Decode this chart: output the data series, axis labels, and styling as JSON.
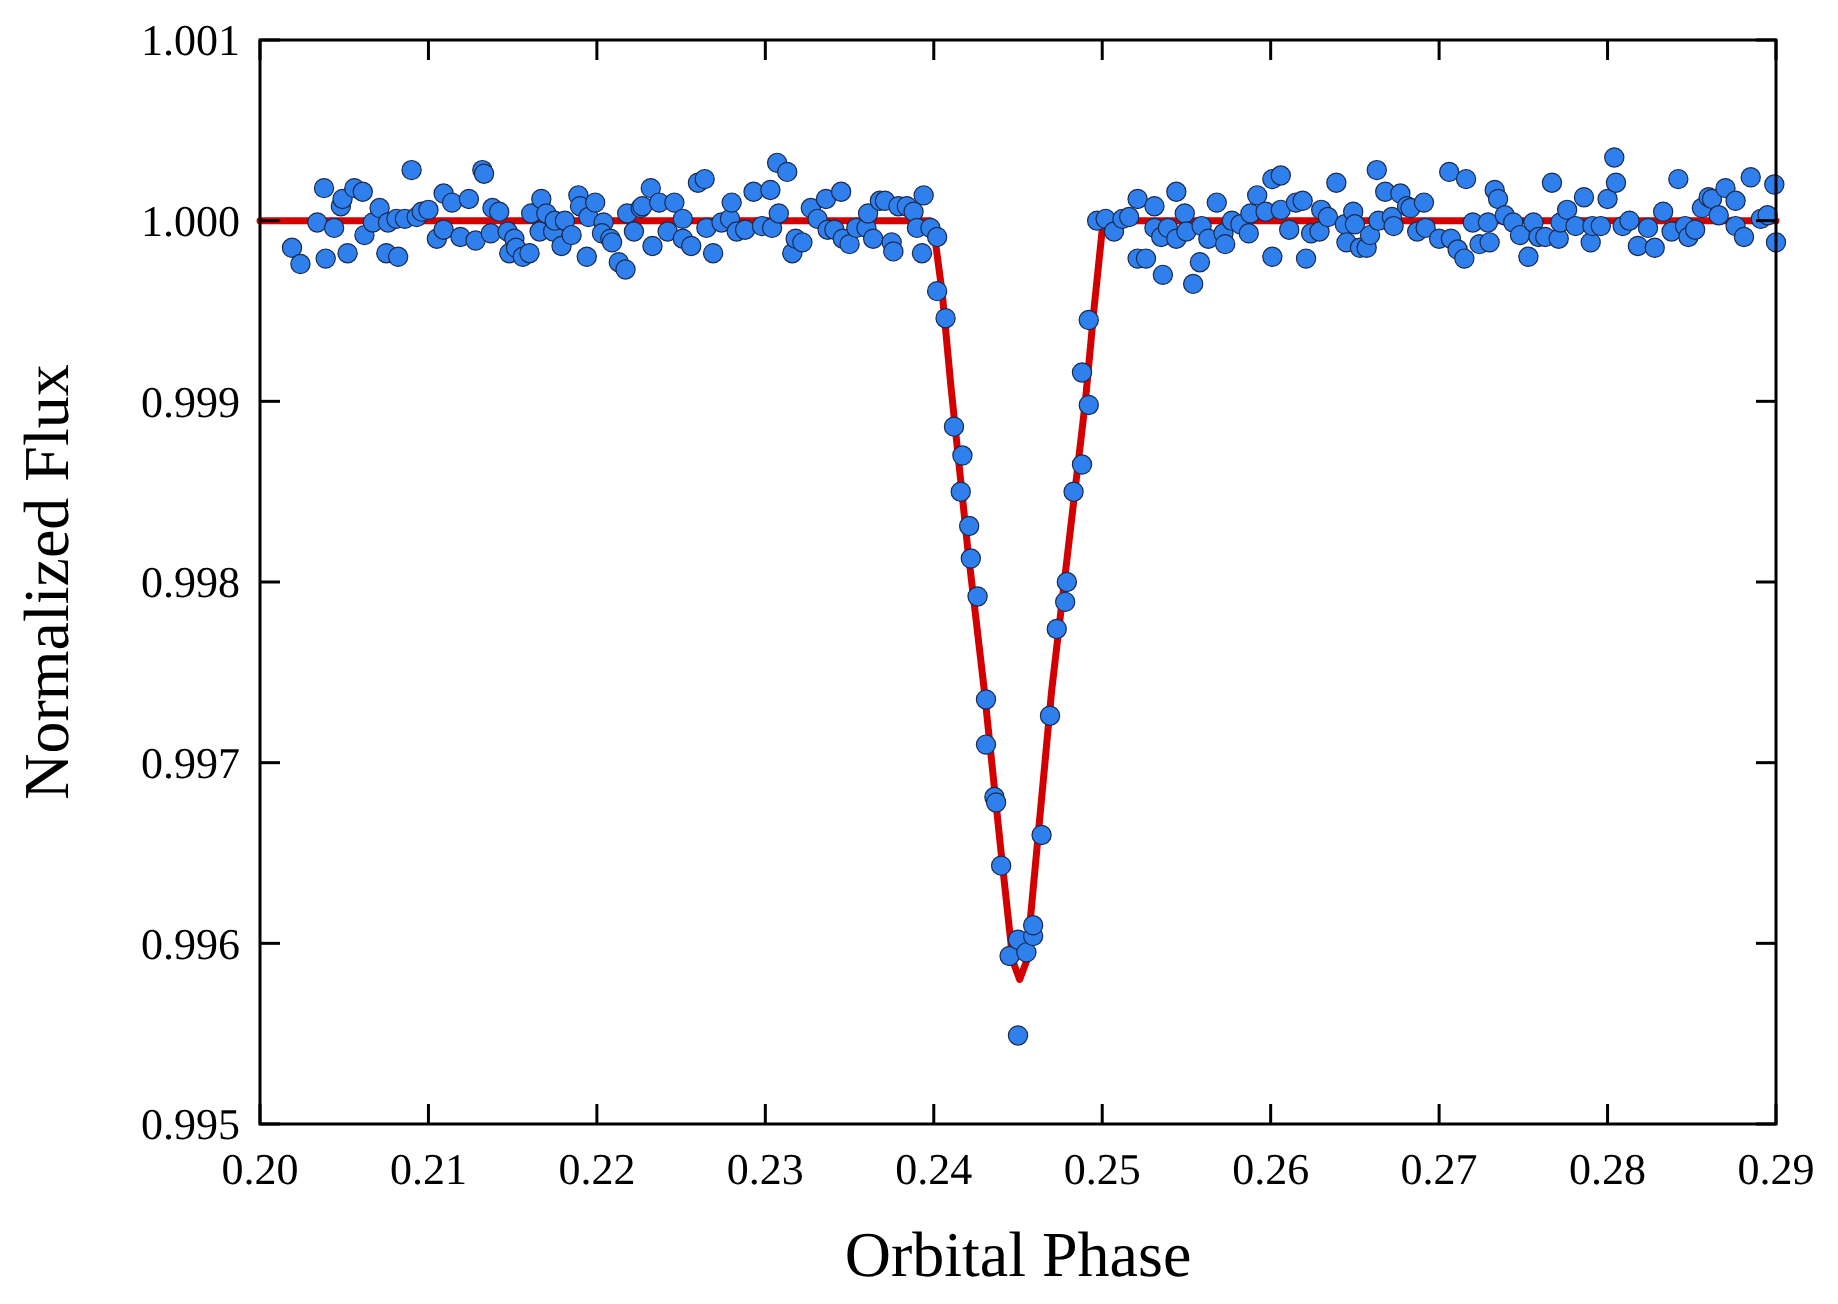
{
  "chart_data": {
    "type": "scatter",
    "xlabel": "Orbital Phase",
    "ylabel": "Normalized Flux",
    "xlim": [
      0.2,
      0.29
    ],
    "ylim": [
      0.995,
      1.001
    ],
    "xticks": [
      {
        "value": 0.2,
        "label": "0.20"
      },
      0.21,
      0.22,
      0.23,
      0.24,
      0.25,
      0.26,
      0.27,
      0.28,
      0.29
    ],
    "yticks": [
      0.995,
      0.996,
      0.997,
      0.998,
      0.999,
      {
        "value": 1,
        "label": "1.000"
      },
      1.001
    ],
    "grid": false,
    "series": [
      {
        "type": "scatter",
        "marker": "circle",
        "color": "#2f80ed",
        "x": [
          0.2019,
          0.2024,
          0.2034,
          0.2038,
          0.2039,
          0.2044,
          0.2048,
          0.2049,
          0.2052,
          0.2056,
          0.2061,
          0.2062,
          0.2067,
          0.2071,
          0.2075,
          0.2076,
          0.2082,
          0.2081,
          0.2086,
          0.209,
          0.2093,
          0.2096,
          0.21,
          0.2105,
          0.2109,
          0.2109,
          0.2114,
          0.2119,
          0.2124,
          0.2128,
          0.2132,
          0.2133,
          0.2137,
          0.2138,
          0.2142,
          0.2147,
          0.2148,
          0.2151,
          0.2152,
          0.2156,
          0.216,
          0.2161,
          0.2166,
          0.2167,
          0.217,
          0.2174,
          0.2175,
          0.2179,
          0.2181,
          0.2185,
          0.2189,
          0.219,
          0.2194,
          0.2195,
          0.2199,
          0.2204,
          0.2203,
          0.2208,
          0.2209,
          0.2213,
          0.2217,
          0.2218,
          0.2222,
          0.2226,
          0.2227,
          0.2232,
          0.2233,
          0.2237,
          0.2242,
          0.2246,
          0.2251,
          0.2251,
          0.2256,
          0.226,
          0.2264,
          0.2265,
          0.2269,
          0.2274,
          0.2279,
          0.228,
          0.2283,
          0.2288,
          0.2293,
          0.2298,
          0.2303,
          0.2304,
          0.2307,
          0.2308,
          0.2313,
          0.2316,
          0.2318,
          0.2322,
          0.2327,
          0.2331,
          0.2336,
          0.2337,
          0.2341,
          0.2345,
          0.2346,
          0.235,
          0.2354,
          0.236,
          0.2361,
          0.2364,
          0.2368,
          0.2371,
          0.2375,
          0.2376,
          0.2379,
          0.2384,
          0.2388,
          0.239,
          0.2393,
          0.2394,
          0.2398,
          0.2402,
          0.2402,
          0.2407,
          0.2412,
          0.2416,
          0.2417,
          0.2421,
          0.2422,
          0.2426,
          0.2431,
          0.2431,
          0.2436,
          0.2437,
          0.244,
          0.2445,
          0.245,
          0.245,
          0.2455,
          0.2459,
          0.2459,
          0.2464,
          0.2469,
          0.2473,
          0.2478,
          0.2479,
          0.2483,
          0.2488,
          0.2488,
          0.2492,
          0.2492,
          0.2497,
          0.2502,
          0.2507,
          0.2512,
          0.2516,
          0.2521,
          0.2521,
          0.2526,
          0.2531,
          0.2531,
          0.2535,
          0.2536,
          0.2539,
          0.2544,
          0.2544,
          0.2549,
          0.255,
          0.2554,
          0.2558,
          0.2559,
          0.2563,
          0.2568,
          0.2572,
          0.2573,
          0.2577,
          0.2582,
          0.2587,
          0.2588,
          0.2592,
          0.2597,
          0.2601,
          0.2601,
          0.2606,
          0.2606,
          0.2611,
          0.2615,
          0.2619,
          0.2621,
          0.2624,
          0.2629,
          0.263,
          0.2634,
          0.2639,
          0.2644,
          0.2645,
          0.2649,
          0.265,
          0.2653,
          0.2657,
          0.2659,
          0.2663,
          0.2664,
          0.2668,
          0.2672,
          0.2673,
          0.2677,
          0.2681,
          0.2683,
          0.2687,
          0.2691,
          0.2692,
          0.27,
          0.2706,
          0.2707,
          0.2711,
          0.2715,
          0.2716,
          0.272,
          0.2724,
          0.2729,
          0.273,
          0.2733,
          0.2735,
          0.2739,
          0.2744,
          0.2748,
          0.2753,
          0.2756,
          0.2759,
          0.2763,
          0.2767,
          0.2771,
          0.2772,
          0.2776,
          0.2781,
          0.2786,
          0.279,
          0.2791,
          0.2796,
          0.28,
          0.2804,
          0.2805,
          0.2809,
          0.2813,
          0.2818,
          0.2824,
          0.2828,
          0.2833,
          0.2838,
          0.2842,
          0.2846,
          0.2848,
          0.2852,
          0.2856,
          0.286,
          0.2862,
          0.2866,
          0.287,
          0.2876,
          0.2876,
          0.2881,
          0.2885,
          0.2891,
          0.2895,
          0.2899,
          0.29
        ],
        "values": [
          0.99985,
          0.99976,
          0.99999,
          1.00018,
          0.99979,
          0.99996,
          1.00008,
          1.00012,
          0.99982,
          1.00018,
          1.00016,
          0.99992,
          0.99999,
          1.00007,
          0.99982,
          0.99999,
          0.9998,
          1.00001,
          1.00001,
          1.00028,
          1.00002,
          1.00005,
          1.00006,
          0.9999,
          1.00015,
          0.99995,
          1.0001,
          0.99991,
          1.00012,
          0.99989,
          1.00028,
          1.00026,
          0.99993,
          1.00007,
          1.00005,
          0.99994,
          0.99982,
          0.9999,
          0.99985,
          0.9998,
          0.99982,
          1.00004,
          0.99994,
          1.00012,
          1.00004,
          0.99994,
          1.0,
          0.99986,
          1.0,
          0.99992,
          1.00014,
          1.00008,
          0.9998,
          1.00002,
          1.0001,
          0.99999,
          0.99993,
          0.9999,
          0.99988,
          0.99977,
          0.99973,
          1.00004,
          0.99994,
          1.00007,
          1.00008,
          1.00018,
          0.99986,
          1.0001,
          0.99994,
          1.0001,
          1.00001,
          0.9999,
          0.99986,
          1.00021,
          1.00023,
          0.99996,
          0.99982,
          0.99999,
          1.00001,
          1.0001,
          0.99994,
          0.99995,
          1.00016,
          0.99997,
          1.00017,
          0.99996,
          1.00032,
          1.00004,
          1.00027,
          0.99982,
          0.9999,
          0.99988,
          1.00007,
          1.00001,
          1.00012,
          0.99995,
          0.99995,
          1.00016,
          0.9999,
          0.99987,
          0.99996,
          0.99996,
          1.00004,
          0.9999,
          1.00011,
          1.00011,
          0.99988,
          0.99983,
          1.00008,
          1.00008,
          1.00005,
          0.99996,
          0.99982,
          1.00014,
          0.99996,
          0.99991,
          0.99961,
          0.99946,
          0.99886,
          0.9985,
          0.9987,
          0.99831,
          0.99813,
          0.99792,
          0.99735,
          0.9971,
          0.99681,
          0.99678,
          0.99643,
          0.99593,
          0.99602,
          0.99549,
          0.99595,
          0.99604,
          0.9961,
          0.9966,
          0.99726,
          0.99774,
          0.99789,
          0.998,
          0.9985,
          0.99865,
          0.99916,
          0.99898,
          0.99945,
          1.0,
          1.00001,
          0.99994,
          1.00001,
          1.00002,
          1.00012,
          0.99979,
          0.99979,
          1.00008,
          0.99996,
          0.99991,
          0.9997,
          0.99996,
          1.00016,
          0.9999,
          1.00004,
          0.99994,
          0.99965,
          0.99977,
          0.99997,
          0.9999,
          1.0001,
          0.99993,
          0.99987,
          1.0,
          0.99998,
          0.99993,
          1.00004,
          1.00014,
          1.00005,
          0.9998,
          1.00023,
          1.00025,
          1.00006,
          0.99995,
          1.0001,
          1.00011,
          0.99979,
          0.99993,
          0.99994,
          1.00006,
          1.00002,
          1.00021,
          0.99998,
          0.99988,
          1.00005,
          0.99998,
          0.99985,
          0.99985,
          0.99992,
          1.00028,
          1.0,
          1.00016,
          1.00002,
          0.99997,
          1.00015,
          1.00008,
          1.00007,
          0.99994,
          1.0001,
          0.99996,
          0.9999,
          1.00027,
          0.9999,
          0.99984,
          0.99979,
          1.00023,
          0.99999,
          0.99987,
          0.99999,
          0.99988,
          1.00017,
          1.00012,
          1.00003,
          0.99999,
          0.99992,
          0.9998,
          0.99999,
          0.99991,
          0.99991,
          1.00021,
          0.9999,
          0.99999,
          1.00006,
          0.99997,
          1.00013,
          0.99988,
          0.99997,
          0.99997,
          1.00012,
          1.00035,
          1.00021,
          0.99997,
          1.0,
          0.99986,
          0.99996,
          0.99985,
          1.00005,
          0.99994,
          1.00023,
          0.99997,
          0.99991,
          0.99995,
          1.00007,
          1.00013,
          1.00012,
          1.00003,
          1.00018,
          1.00011,
          0.99997,
          0.99991,
          1.00024,
          1.00001,
          1.00003,
          1.0002,
          0.99988
        ]
      },
      {
        "type": "line",
        "marker": "none",
        "line_style": "solid",
        "color": "#d40000",
        "x": [
          0.2,
          0.2398,
          0.24,
          0.2405,
          0.241,
          0.242,
          0.243,
          0.244,
          0.2447,
          0.2451,
          0.2455,
          0.2462,
          0.247,
          0.248,
          0.249,
          0.2495,
          0.25,
          0.2503,
          0.29
        ],
        "values": [
          1.0,
          1.0,
          0.99995,
          0.9996,
          0.9991,
          0.9982,
          0.9974,
          0.9965,
          0.9959,
          0.9958,
          0.9959,
          0.9966,
          0.9974,
          0.9982,
          0.999,
          0.9995,
          0.99995,
          1.0,
          1.0
        ]
      }
    ]
  }
}
